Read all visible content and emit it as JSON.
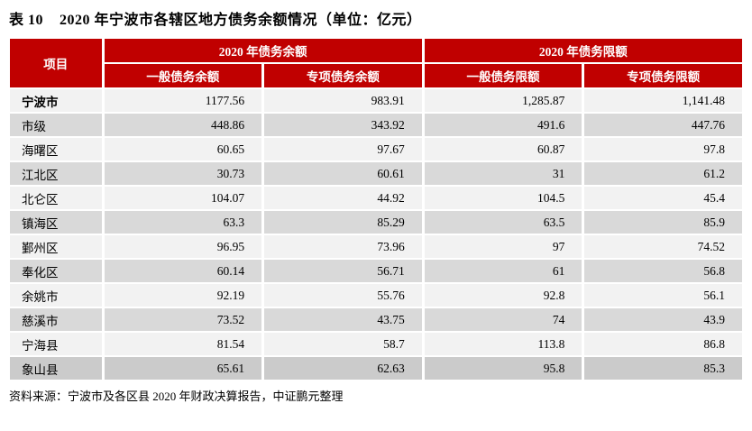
{
  "title": {
    "table_number": "表 10",
    "text": "2020 年宁波市各辖区地方债务余额情况（单位：亿元）"
  },
  "table": {
    "corner_header": "项目",
    "groups": [
      {
        "label": "2020 年债务余额",
        "columns": [
          "一般债务余额",
          "专项债务余额"
        ]
      },
      {
        "label": "2020 年债务限额",
        "columns": [
          "一般债务限额",
          "专项债务限额"
        ]
      }
    ],
    "rows": [
      {
        "name": "宁波市",
        "values": [
          "1177.56",
          "983.91",
          "1,285.87",
          "1,141.48"
        ]
      },
      {
        "name": "市级",
        "values": [
          "448.86",
          "343.92",
          "491.6",
          "447.76"
        ]
      },
      {
        "name": "海曙区",
        "values": [
          "60.65",
          "97.67",
          "60.87",
          "97.8"
        ]
      },
      {
        "name": "江北区",
        "values": [
          "30.73",
          "60.61",
          "31",
          "61.2"
        ]
      },
      {
        "name": "北仑区",
        "values": [
          "104.07",
          "44.92",
          "104.5",
          "45.4"
        ]
      },
      {
        "name": "镇海区",
        "values": [
          "63.3",
          "85.29",
          "63.5",
          "85.9"
        ]
      },
      {
        "name": "鄞州区",
        "values": [
          "96.95",
          "73.96",
          "97",
          "74.52"
        ]
      },
      {
        "name": "奉化区",
        "values": [
          "60.14",
          "56.71",
          "61",
          "56.8"
        ]
      },
      {
        "name": "余姚市",
        "values": [
          "92.19",
          "55.76",
          "92.8",
          "56.1"
        ]
      },
      {
        "name": "慈溪市",
        "values": [
          "73.52",
          "43.75",
          "74",
          "43.9"
        ]
      },
      {
        "name": "宁海县",
        "values": [
          "81.54",
          "58.7",
          "113.8",
          "86.8"
        ]
      },
      {
        "name": "象山县",
        "values": [
          "65.61",
          "62.63",
          "95.8",
          "85.3"
        ]
      }
    ]
  },
  "source": "资料来源：宁波市及各区县 2020 年财政决算报告，中证鹏元整理",
  "colors": {
    "header_red": "#C00000",
    "row_light": "#F2F2F2",
    "row_gray": "#D9D9D9",
    "row_last": "#CBCBCB",
    "header_text": "#FFFFFF"
  }
}
